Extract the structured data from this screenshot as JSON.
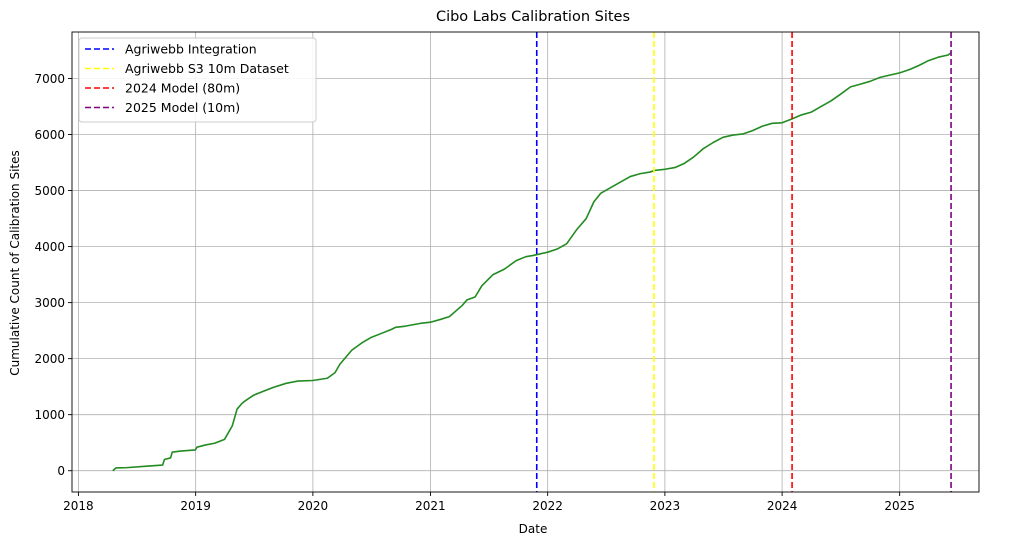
{
  "chart_data": {
    "type": "line",
    "title": "Cibo Labs Calibration Sites",
    "xlabel": "Date",
    "ylabel": "Cumulative Count of Calibration Sites",
    "xlim": [
      "2017-12-12",
      "2025-09-05"
    ],
    "ylim": [
      -380,
      7830
    ],
    "x_ticks": [
      "2018",
      "2019",
      "2020",
      "2021",
      "2022",
      "2023",
      "2024",
      "2025"
    ],
    "y_ticks": [
      0,
      1000,
      2000,
      3000,
      4000,
      5000,
      6000,
      7000
    ],
    "grid": true,
    "legend_position": "upper-left",
    "series": [
      {
        "color": "#228b22",
        "x": [
          "2018-04-18",
          "2018-04-28",
          "2018-06-01",
          "2018-08-01",
          "2018-09-20",
          "2018-09-26",
          "2018-10-15",
          "2018-10-20",
          "2018-11-15",
          "2018-12-31",
          "2019-01-05",
          "2019-02-01",
          "2019-03-01",
          "2019-04-01",
          "2019-04-25",
          "2019-05-10",
          "2019-05-25",
          "2019-06-05",
          "2019-07-01",
          "2019-08-01",
          "2019-09-01",
          "2019-10-10",
          "2019-11-15",
          "2019-12-31",
          "2020-02-15",
          "2020-03-10",
          "2020-03-25",
          "2020-05-01",
          "2020-06-01",
          "2020-07-01",
          "2020-08-01",
          "2020-09-01",
          "2020-09-15",
          "2020-10-15",
          "2020-12-01",
          "2021-01-01",
          "2021-02-01",
          "2021-03-01",
          "2021-04-10",
          "2021-04-25",
          "2021-05-20",
          "2021-06-10",
          "2021-07-15",
          "2021-08-20",
          "2021-09-25",
          "2021-10-25",
          "2021-11-15",
          "2021-12-01",
          "2022-01-01",
          "2022-02-01",
          "2022-03-01",
          "2022-04-01",
          "2022-05-01",
          "2022-05-25",
          "2022-06-15",
          "2022-07-15",
          "2022-08-15",
          "2022-09-15",
          "2022-10-15",
          "2022-11-15",
          "2022-12-01",
          "2023-01-01",
          "2023-02-01",
          "2023-03-01",
          "2023-04-01",
          "2023-05-01",
          "2023-06-01",
          "2023-07-01",
          "2023-08-01",
          "2023-09-01",
          "2023-10-01",
          "2023-11-01",
          "2023-12-01",
          "2024-01-01",
          "2024-02-01",
          "2024-03-01",
          "2024-04-01",
          "2024-05-01",
          "2024-06-01",
          "2024-07-01",
          "2024-08-01",
          "2024-09-01",
          "2024-10-01",
          "2024-11-01",
          "2024-12-01",
          "2025-01-01",
          "2025-02-01",
          "2025-03-01",
          "2025-04-01",
          "2025-05-01",
          "2025-06-01",
          "2025-06-10"
        ],
        "y": [
          0,
          50,
          55,
          80,
          100,
          200,
          230,
          330,
          350,
          370,
          420,
          460,
          490,
          560,
          800,
          1100,
          1200,
          1250,
          1350,
          1420,
          1490,
          1560,
          1600,
          1610,
          1650,
          1750,
          1900,
          2150,
          2280,
          2380,
          2450,
          2520,
          2560,
          2580,
          2630,
          2650,
          2700,
          2750,
          2950,
          3050,
          3100,
          3300,
          3500,
          3600,
          3750,
          3820,
          3840,
          3860,
          3900,
          3960,
          4050,
          4300,
          4500,
          4800,
          4950,
          5050,
          5150,
          5250,
          5300,
          5330,
          5360,
          5380,
          5410,
          5480,
          5600,
          5750,
          5860,
          5950,
          5990,
          6010,
          6070,
          6150,
          6200,
          6210,
          6280,
          6350,
          6400,
          6500,
          6600,
          6720,
          6850,
          6900,
          6950,
          7020,
          7060,
          7100,
          7160,
          7230,
          7320,
          7380,
          7420,
          7460
        ]
      }
    ],
    "vlines": [
      {
        "name": "Agriwebb Integration",
        "date": "2021-11-28",
        "color": "#0000ff"
      },
      {
        "name": "Agriwebb S3 10m Dataset",
        "date": "2022-11-28",
        "color": "#ffff00"
      },
      {
        "name": "2024 Model (80m)",
        "date": "2024-02-01",
        "color": "#ff0000"
      },
      {
        "name": "2025 Model (10m)",
        "date": "2025-06-10",
        "color": "#800080"
      }
    ]
  }
}
